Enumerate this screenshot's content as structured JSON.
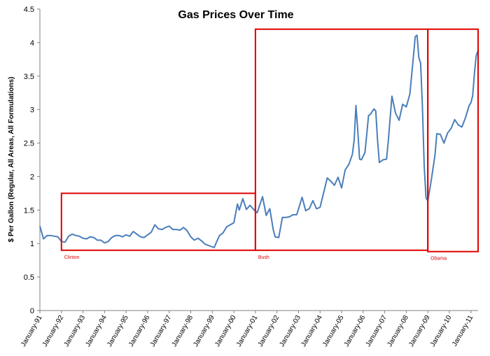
{
  "chart_data": {
    "type": "line",
    "title": "Gas Prices Over Time",
    "xlabel": "",
    "ylabel": "$ Per Gallon (Regular, All Areas, All Formulations)",
    "ylim": [
      0,
      4.5
    ],
    "yticks": [
      "0",
      "0.5",
      "1",
      "1.5",
      "2",
      "2.5",
      "3",
      "3.5",
      "4",
      "4.5"
    ],
    "xlim": [
      "1991-01",
      "2011-05"
    ],
    "xticks": [
      "January-91",
      "January-92",
      "January-93",
      "January-94",
      "January-95",
      "January-96",
      "January-97",
      "January-98",
      "January-99",
      "January-00",
      "January-01",
      "January-02",
      "January-03",
      "January-04",
      "January-05",
      "January-06",
      "January-07",
      "January-08",
      "January-09",
      "January-10",
      "January-11"
    ],
    "grid": false,
    "legend": "none",
    "line_color": "#4a7ebb",
    "annotation_color": "#e00000",
    "series": [
      {
        "x": [
          "1991-01",
          "1991-03",
          "1991-05",
          "1991-07",
          "1991-09",
          "1991-11",
          "1992-01",
          "1992-03",
          "1992-05",
          "1992-07",
          "1992-09",
          "1992-11",
          "1993-01",
          "1993-03",
          "1993-05",
          "1993-07",
          "1993-09",
          "1993-11",
          "1994-01",
          "1994-03",
          "1994-05",
          "1994-07",
          "1994-09",
          "1994-11",
          "1995-01",
          "1995-03",
          "1995-05",
          "1995-07",
          "1995-09",
          "1995-11",
          "1996-01",
          "1996-03",
          "1996-05",
          "1996-07",
          "1996-09",
          "1996-11",
          "1997-01",
          "1997-03",
          "1997-05",
          "1997-07",
          "1997-09",
          "1997-11",
          "1998-01",
          "1998-03",
          "1998-05",
          "1998-07",
          "1998-09",
          "1998-11",
          "1999-01",
          "1999-02",
          "1999-03",
          "1999-05",
          "1999-07",
          "1999-09",
          "1999-11",
          "2000-01",
          "2000-03",
          "2000-04",
          "2000-06",
          "2000-08",
          "2000-10",
          "2000-12",
          "2001-02",
          "2001-05",
          "2001-07",
          "2001-09",
          "2001-11",
          "2001-12",
          "2002-02",
          "2002-04",
          "2002-06",
          "2002-08",
          "2002-10",
          "2002-12",
          "2003-03",
          "2003-05",
          "2003-07",
          "2003-09",
          "2003-11",
          "2004-01",
          "2004-03",
          "2004-05",
          "2004-07",
          "2004-09",
          "2004-11",
          "2005-01",
          "2005-03",
          "2005-05",
          "2005-07",
          "2005-08",
          "2005-09",
          "2005-10",
          "2005-11",
          "2005-12",
          "2006-02",
          "2006-04",
          "2006-05",
          "2006-07",
          "2006-08",
          "2006-09",
          "2006-10",
          "2006-12",
          "2007-02",
          "2007-03",
          "2007-05",
          "2007-07",
          "2007-09",
          "2007-11",
          "2008-01",
          "2008-03",
          "2008-05",
          "2008-06",
          "2008-07",
          "2008-08",
          "2008-09",
          "2008-10",
          "2008-11",
          "2008-12",
          "2009-01",
          "2009-03",
          "2009-05",
          "2009-06",
          "2009-08",
          "2009-10",
          "2009-12",
          "2010-02",
          "2010-04",
          "2010-06",
          "2010-08",
          "2010-10",
          "2010-12",
          "2011-01",
          "2011-02",
          "2011-03",
          "2011-04",
          "2011-05"
        ],
        "values": [
          1.26,
          1.07,
          1.12,
          1.12,
          1.11,
          1.1,
          1.03,
          1.02,
          1.11,
          1.14,
          1.12,
          1.11,
          1.08,
          1.07,
          1.1,
          1.09,
          1.05,
          1.05,
          1.01,
          1.03,
          1.09,
          1.12,
          1.12,
          1.1,
          1.13,
          1.11,
          1.18,
          1.14,
          1.1,
          1.09,
          1.13,
          1.17,
          1.28,
          1.22,
          1.21,
          1.24,
          1.26,
          1.21,
          1.21,
          1.2,
          1.24,
          1.19,
          1.1,
          1.05,
          1.08,
          1.04,
          0.99,
          0.97,
          0.95,
          0.94,
          1.0,
          1.12,
          1.16,
          1.25,
          1.28,
          1.31,
          1.59,
          1.5,
          1.67,
          1.51,
          1.57,
          1.51,
          1.46,
          1.7,
          1.42,
          1.52,
          1.2,
          1.1,
          1.09,
          1.39,
          1.39,
          1.4,
          1.43,
          1.43,
          1.69,
          1.49,
          1.52,
          1.64,
          1.52,
          1.54,
          1.76,
          1.98,
          1.93,
          1.87,
          1.99,
          1.83,
          2.1,
          2.18,
          2.33,
          2.55,
          3.06,
          2.69,
          2.26,
          2.25,
          2.36,
          2.91,
          2.93,
          3.01,
          2.98,
          2.55,
          2.21,
          2.25,
          2.26,
          2.53,
          3.2,
          2.95,
          2.84,
          3.08,
          3.04,
          3.23,
          3.79,
          4.09,
          4.11,
          3.78,
          3.69,
          3.03,
          2.16,
          1.68,
          1.64,
          1.96,
          2.32,
          2.64,
          2.63,
          2.5,
          2.65,
          2.72,
          2.85,
          2.77,
          2.74,
          2.88,
          3.06,
          3.1,
          3.21,
          3.56,
          3.81,
          3.88
        ]
      }
    ],
    "annotations": [
      {
        "label": "Clinton",
        "x_range": [
          "1992-01",
          "2001-01"
        ],
        "y_range": [
          0.9,
          1.75
        ]
      },
      {
        "label": "Bush",
        "x_range": [
          "2001-01",
          "2009-01"
        ],
        "y_range": [
          0.9,
          4.2
        ]
      },
      {
        "label": "Obama",
        "x_range": [
          "2009-01",
          "2011-05"
        ],
        "y_range": [
          0.88,
          4.2
        ]
      }
    ]
  }
}
